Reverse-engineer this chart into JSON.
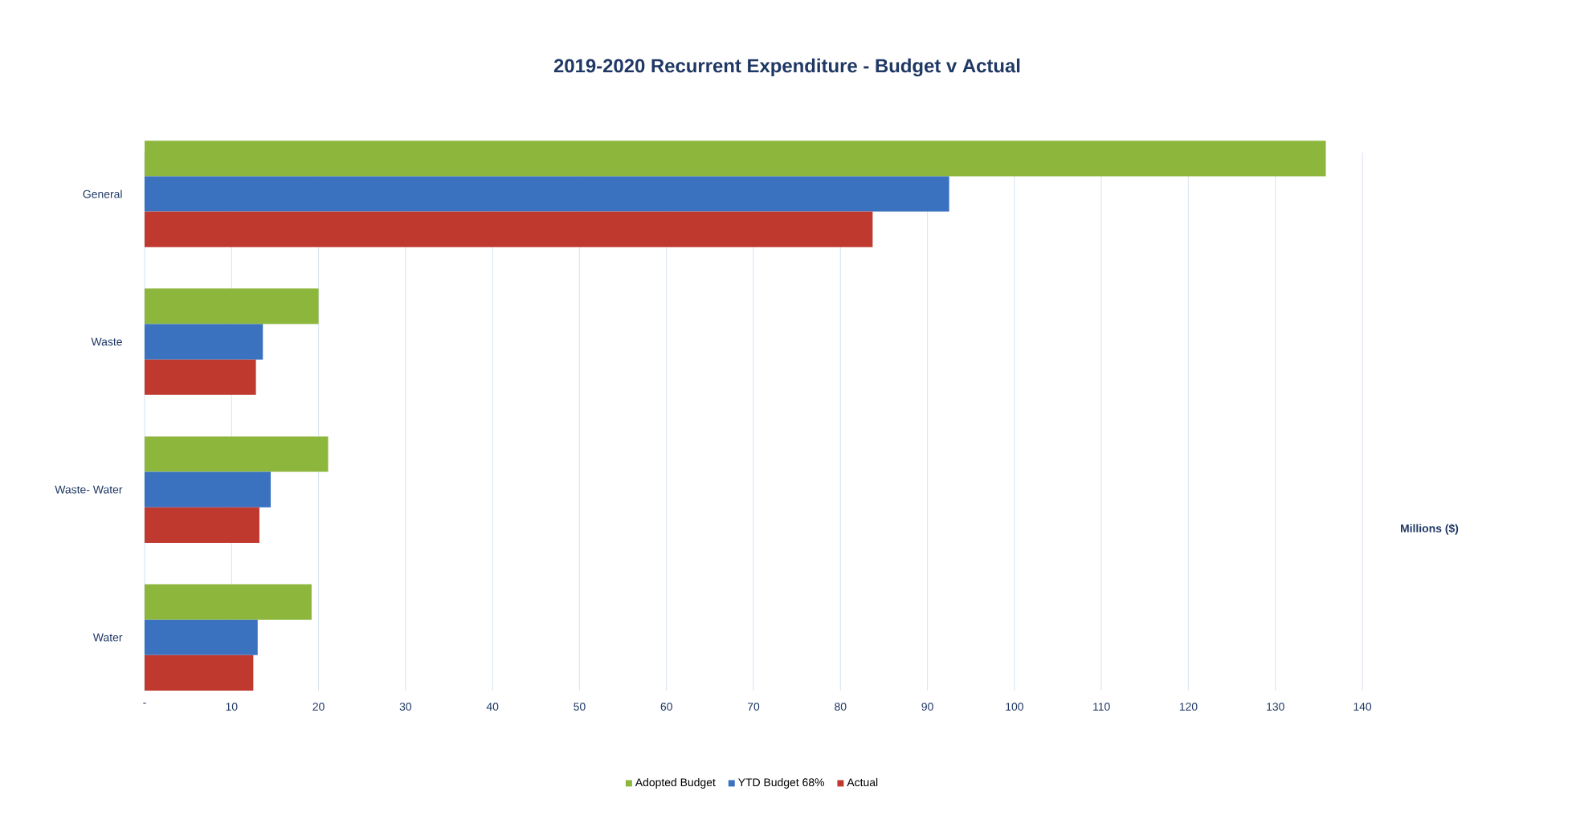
{
  "chart_data": {
    "type": "bar",
    "orientation": "horizontal",
    "title": "2019-2020 Recurrent Expenditure - Budget v Actual",
    "xlabel": "Millions ($)",
    "categories": [
      "General",
      "Waste",
      "Waste- Water",
      "Water"
    ],
    "series": [
      {
        "name": "Adopted Budget",
        "color": "#8db63c",
        "values": [
          135.8,
          20.0,
          21.1,
          19.2
        ]
      },
      {
        "name": "YTD Budget 68%",
        "color": "#3a72c0",
        "values": [
          92.5,
          13.6,
          14.5,
          13.0
        ]
      },
      {
        "name": "Actual",
        "color": "#c0392f",
        "values": [
          83.7,
          12.8,
          13.2,
          12.5
        ]
      }
    ],
    "xlim": [
      0,
      140
    ],
    "xticks": [
      {
        "value": 0,
        "label": "-"
      },
      10,
      20,
      30,
      40,
      50,
      60,
      70,
      80,
      90,
      100,
      110,
      120,
      130,
      140
    ],
    "grid": "x",
    "legend": "bottom"
  }
}
